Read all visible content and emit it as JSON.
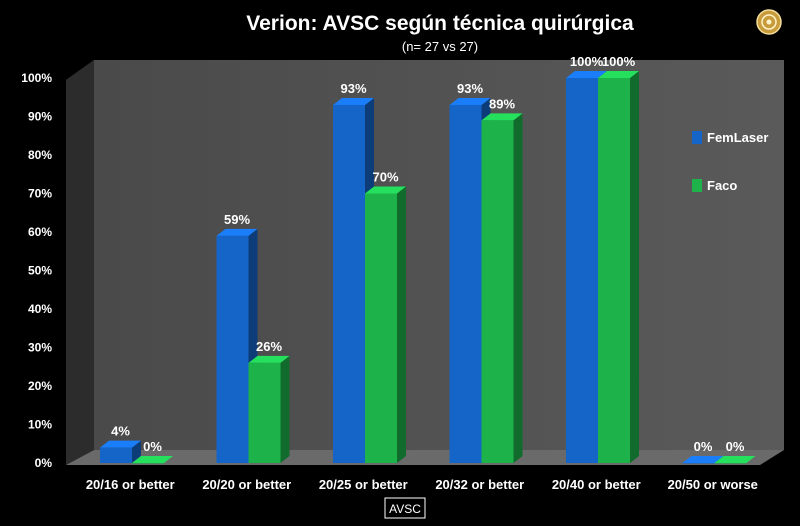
{
  "chart_data": {
    "type": "bar",
    "title": "Verion: AVSC según técnica quirúrgica",
    "subtitle": "(n= 27 vs 27)",
    "xlabel": "AVSC",
    "ylabel": "",
    "ylim": [
      0,
      100
    ],
    "yticks": [
      "0%",
      "10%",
      "20%",
      "30%",
      "40%",
      "50%",
      "60%",
      "70%",
      "80%",
      "90%",
      "100%"
    ],
    "categories": [
      "20/16 or better",
      "20/20 or better",
      "20/25 or better",
      "20/32 or better",
      "20/40 or better",
      "20/50 or worse"
    ],
    "series": [
      {
        "name": "FemLaser",
        "values": [
          4,
          59,
          93,
          93,
          100,
          0
        ],
        "labels": [
          "4%",
          "59%",
          "93%",
          "93%",
          "100%",
          "0%"
        ],
        "color": "#1565c8"
      },
      {
        "name": "Faco",
        "values": [
          0,
          26,
          70,
          89,
          100,
          0
        ],
        "labels": [
          "0%",
          "26%",
          "70%",
          "89%",
          "100%",
          "0%"
        ],
        "color": "#1db34a"
      }
    ],
    "legend_position": "right",
    "grid": false
  },
  "logo": {
    "icon": "emblem-icon"
  }
}
